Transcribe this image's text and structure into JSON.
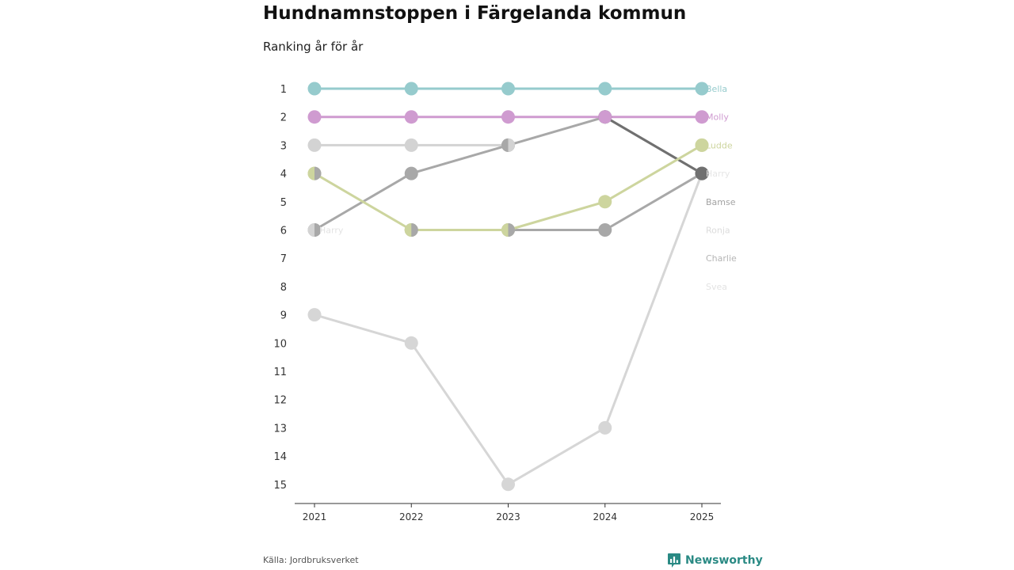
{
  "header": {
    "title": "Hundnamnstoppen i Färgelanda kommun",
    "subtitle": "Ranking år för år"
  },
  "footer": {
    "source": "Källa: Jordbruksverket",
    "brand": "Newsworthy"
  },
  "icons": {
    "brand_logo": "bar-chart-badge-icon"
  },
  "chart_data": {
    "type": "line",
    "subtype": "bump",
    "title": "Hundnamnstoppen i Färgelanda kommun",
    "subtitle": "Ranking år för år",
    "x": [
      "2021",
      "2022",
      "2023",
      "2024",
      "2025"
    ],
    "y_ticks": [
      "1",
      "2",
      "3",
      "4",
      "5",
      "6",
      "7",
      "8",
      "9",
      "10",
      "11",
      "12",
      "13",
      "14",
      "15"
    ],
    "ylim": [
      1,
      15
    ],
    "y_inverted": true,
    "xlabel": "",
    "ylabel": "",
    "grid": false,
    "series": [
      {
        "name": "Svea",
        "color": "#d6d6d6",
        "label_color": "#e3e3e3",
        "values": [
          9,
          10,
          15,
          13,
          4
        ]
      },
      {
        "name": "Charlie",
        "color": "#d3d3d3",
        "label_color": "#b5b5b5",
        "values": [
          3,
          3,
          3,
          null,
          null
        ]
      },
      {
        "name": "Bamse",
        "color": "#a8a8a8",
        "label_color": "#a3a3a3",
        "values": [
          6,
          4,
          3,
          2,
          4
        ]
      },
      {
        "name": "Ronja",
        "color": "#a8a8a8",
        "label_color": "#dcdcdc",
        "values": [
          null,
          6,
          6,
          6,
          4
        ]
      },
      {
        "name": "Harry",
        "color": "#707070",
        "label_color": "#e6e6e6",
        "values": [
          null,
          null,
          null,
          2,
          4
        ]
      },
      {
        "name": "Ludde",
        "color": "#cdd59e",
        "label_color": "#cdd59e",
        "values": [
          4,
          6,
          6,
          5,
          3
        ]
      },
      {
        "name": "Molly",
        "color": "#cf9bd0",
        "label_color": "#cf9bd0",
        "values": [
          2,
          2,
          2,
          2,
          2
        ]
      },
      {
        "name": "Bella",
        "color": "#96cbcd",
        "label_color": "#96cbcd",
        "values": [
          1,
          1,
          1,
          1,
          1
        ]
      }
    ],
    "end_labels": [
      {
        "text": "Bella",
        "series": "Bella",
        "rank": 1
      },
      {
        "text": "Molly",
        "series": "Molly",
        "rank": 2
      },
      {
        "text": "Ludde",
        "series": "Ludde",
        "rank": 3
      },
      {
        "text": "Harry",
        "series": "Harry",
        "rank": 4
      },
      {
        "text": "Bamse",
        "series": "Bamse",
        "rank": 5
      },
      {
        "text": "Ronja",
        "series": "Ronja",
        "rank": 6
      },
      {
        "text": "Charlie",
        "series": "Charlie",
        "rank": 7
      },
      {
        "text": "Svea",
        "series": "Svea",
        "rank": 8
      }
    ],
    "annotations": [
      {
        "text": "Harry",
        "x": "2021",
        "rank": 6,
        "color": "#e3e3e3"
      }
    ],
    "split_markers": [
      {
        "x": "2021",
        "rank": 4,
        "left": "#cdd59e",
        "right": "#a8a8a8"
      },
      {
        "x": "2021",
        "rank": 6,
        "left": "#d3d3d3",
        "right": "#a8a8a8"
      },
      {
        "x": "2022",
        "rank": 6,
        "left": "#cdd59e",
        "right": "#a8a8a8"
      },
      {
        "x": "2023",
        "rank": 3,
        "left": "#a8a8a8",
        "right": "#d3d3d3"
      },
      {
        "x": "2023",
        "rank": 6,
        "left": "#cdd59e",
        "right": "#a8a8a8"
      },
      {
        "x": "2025",
        "rank": 3,
        "left": "#cdd59e",
        "right": "#cdd59e"
      }
    ]
  }
}
